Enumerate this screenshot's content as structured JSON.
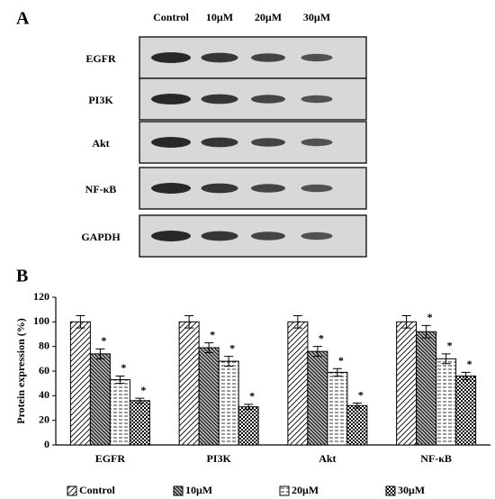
{
  "blot": {
    "panel_label": "A",
    "lanes": [
      "Control",
      "10μM",
      "20μM",
      "30μM"
    ],
    "rows": [
      "EGFR",
      "PI3K",
      "Akt",
      "NF-κB",
      "GAPDH"
    ]
  },
  "chart_data": {
    "type": "bar",
    "panel_label": "B",
    "y_label": "Protein expression (%)",
    "categories": [
      "EGFR",
      "PI3K",
      "Akt",
      "NF-κB"
    ],
    "series": [
      {
        "name": "Control",
        "color": "#000000",
        "pattern": "diagonal",
        "values": [
          100,
          100,
          100,
          100
        ],
        "errors": [
          5,
          5,
          5,
          5
        ]
      },
      {
        "name": "10μM",
        "color": "#000000",
        "pattern": "backslash",
        "values": [
          74,
          79,
          76,
          92
        ],
        "errors": [
          4,
          4,
          4,
          5
        ],
        "markers": [
          "*",
          "*",
          "*",
          "*"
        ]
      },
      {
        "name": "20μM",
        "color": "#000000",
        "pattern": "dash",
        "values": [
          53,
          68,
          59,
          70
        ],
        "errors": [
          3,
          4,
          3,
          4
        ],
        "markers": [
          "*",
          "*",
          "*",
          "*"
        ]
      },
      {
        "name": "30μM",
        "color": "#000000",
        "pattern": "checker",
        "values": [
          36,
          31,
          32,
          56
        ],
        "errors": [
          2,
          2,
          2,
          3
        ],
        "markers": [
          "*",
          "*",
          "*",
          "*"
        ]
      }
    ],
    "ylim": [
      0,
      120
    ],
    "yticks": [
      0,
      20,
      40,
      60,
      80,
      100,
      120
    ]
  }
}
